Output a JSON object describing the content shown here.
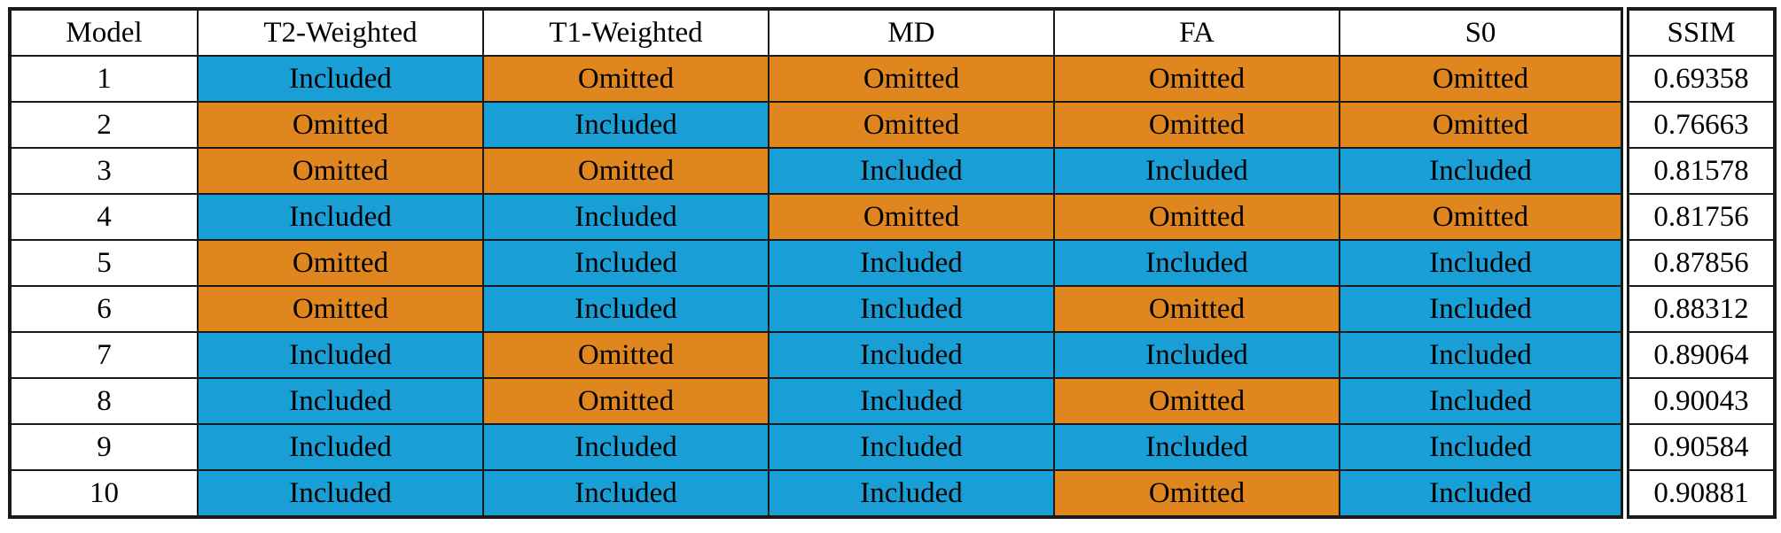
{
  "chart_data": {
    "type": "table",
    "columns": [
      "Model",
      "T2-Weighted",
      "T1-Weighted",
      "MD",
      "FA",
      "S0",
      "SSIM"
    ],
    "rows": [
      [
        "1",
        "Included",
        "Omitted",
        "Omitted",
        "Omitted",
        "Omitted",
        "0.69358"
      ],
      [
        "2",
        "Omitted",
        "Included",
        "Omitted",
        "Omitted",
        "Omitted",
        "0.76663"
      ],
      [
        "3",
        "Omitted",
        "Omitted",
        "Included",
        "Included",
        "Included",
        "0.81578"
      ],
      [
        "4",
        "Included",
        "Included",
        "Omitted",
        "Omitted",
        "Omitted",
        "0.81756"
      ],
      [
        "5",
        "Omitted",
        "Included",
        "Included",
        "Included",
        "Included",
        "0.87856"
      ],
      [
        "6",
        "Omitted",
        "Included",
        "Included",
        "Omitted",
        "Included",
        "0.88312"
      ],
      [
        "7",
        "Included",
        "Omitted",
        "Included",
        "Included",
        "Included",
        "0.89064"
      ],
      [
        "8",
        "Included",
        "Omitted",
        "Included",
        "Omitted",
        "Included",
        "0.90043"
      ],
      [
        "9",
        "Included",
        "Included",
        "Included",
        "Included",
        "Included",
        "0.90584"
      ],
      [
        "10",
        "Included",
        "Included",
        "Included",
        "Omitted",
        "Included",
        "0.90881"
      ]
    ],
    "cell_states": {
      "included": "Included",
      "omitted": "Omitted"
    },
    "colors": {
      "included_bg": "#199ED6",
      "omitted_bg": "#E0861E",
      "border": "#1a1a1a",
      "text": "#000000"
    },
    "layout": {
      "grid": "full-borders",
      "ssim_separator": "double-line",
      "legend": "none",
      "title": "none"
    }
  }
}
